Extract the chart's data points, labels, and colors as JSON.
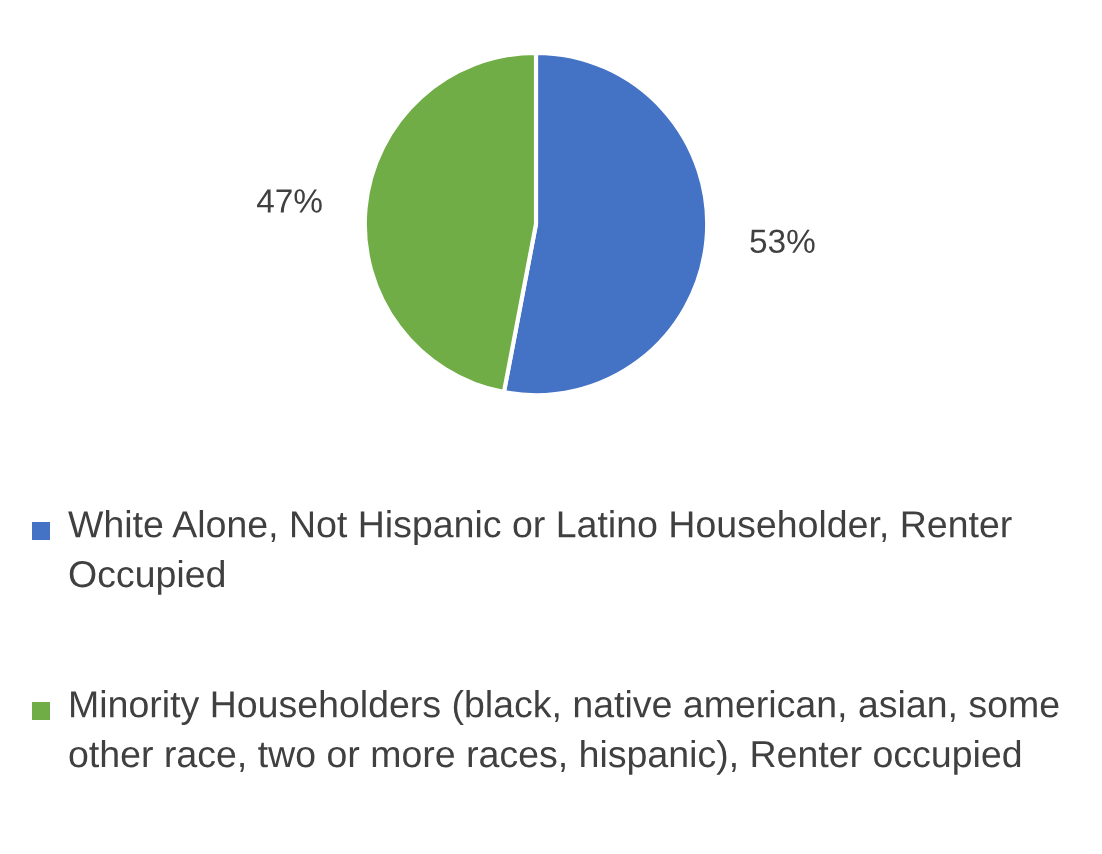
{
  "chart_data": {
    "type": "pie",
    "categories": [
      "White Alone, Not Hispanic or Latino Householder, Renter Occupied",
      "Minority Householders (black, native american, asian, some other race, two or more races, hispanic), Renter occupied"
    ],
    "values": [
      53,
      47
    ],
    "colors": [
      "#4472c4",
      "#70ad47"
    ],
    "value_labels": [
      "53%",
      "47%"
    ],
    "legend": "bottom"
  }
}
